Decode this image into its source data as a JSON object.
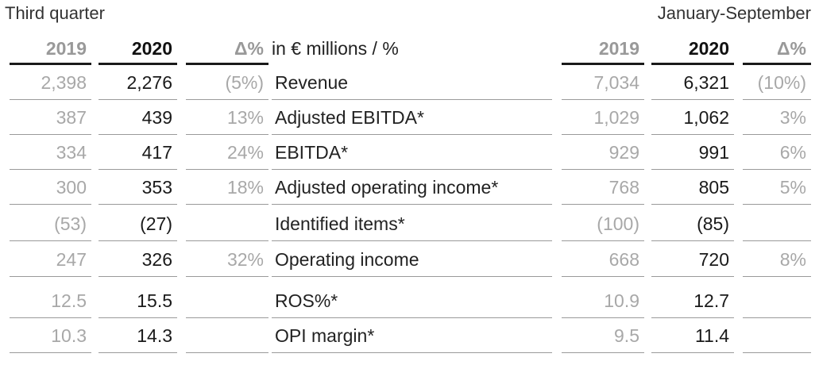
{
  "titles": {
    "left": "Third quarter",
    "right": "January-September"
  },
  "header": {
    "q_prior": "2019",
    "q_curr": "2020",
    "q_delta": "Δ%",
    "label": "in € millions / %",
    "y_prior": "2019",
    "y_curr": "2020",
    "y_delta": "Δ%"
  },
  "rows": [
    {
      "label": "Revenue",
      "q_prior": "2,398",
      "q_curr": "2,276",
      "q_delta": "(5%)",
      "y_prior": "7,034",
      "y_curr": "6,321",
      "y_delta": "(10%)"
    },
    {
      "label": "Adjusted EBITDA*",
      "q_prior": "387",
      "q_curr": "439",
      "q_delta": "13%",
      "y_prior": "1,029",
      "y_curr": "1,062",
      "y_delta": "3%"
    },
    {
      "label": "EBITDA*",
      "q_prior": "334",
      "q_curr": "417",
      "q_delta": "24%",
      "y_prior": "929",
      "y_curr": "991",
      "y_delta": "6%"
    },
    {
      "label": "Adjusted operating income*",
      "q_prior": "300",
      "q_curr": "353",
      "q_delta": "18%",
      "y_prior": "768",
      "y_curr": "805",
      "y_delta": "5%"
    },
    {
      "label": "Identified items*",
      "q_prior": "(53)",
      "q_curr": "(27)",
      "q_delta": "",
      "y_prior": "(100)",
      "y_curr": "(85)",
      "y_delta": ""
    },
    {
      "label": "Operating income",
      "q_prior": "247",
      "q_curr": "326",
      "q_delta": "32%",
      "y_prior": "668",
      "y_curr": "720",
      "y_delta": "8%"
    },
    {
      "label": "ROS%*",
      "q_prior": "12.5",
      "q_curr": "15.5",
      "q_delta": "",
      "y_prior": "10.9",
      "y_curr": "12.7",
      "y_delta": ""
    },
    {
      "label": "OPI margin*",
      "q_prior": "10.3",
      "q_curr": "14.3",
      "q_delta": "",
      "y_prior": "9.5",
      "y_curr": "11.4",
      "y_delta": ""
    }
  ]
}
